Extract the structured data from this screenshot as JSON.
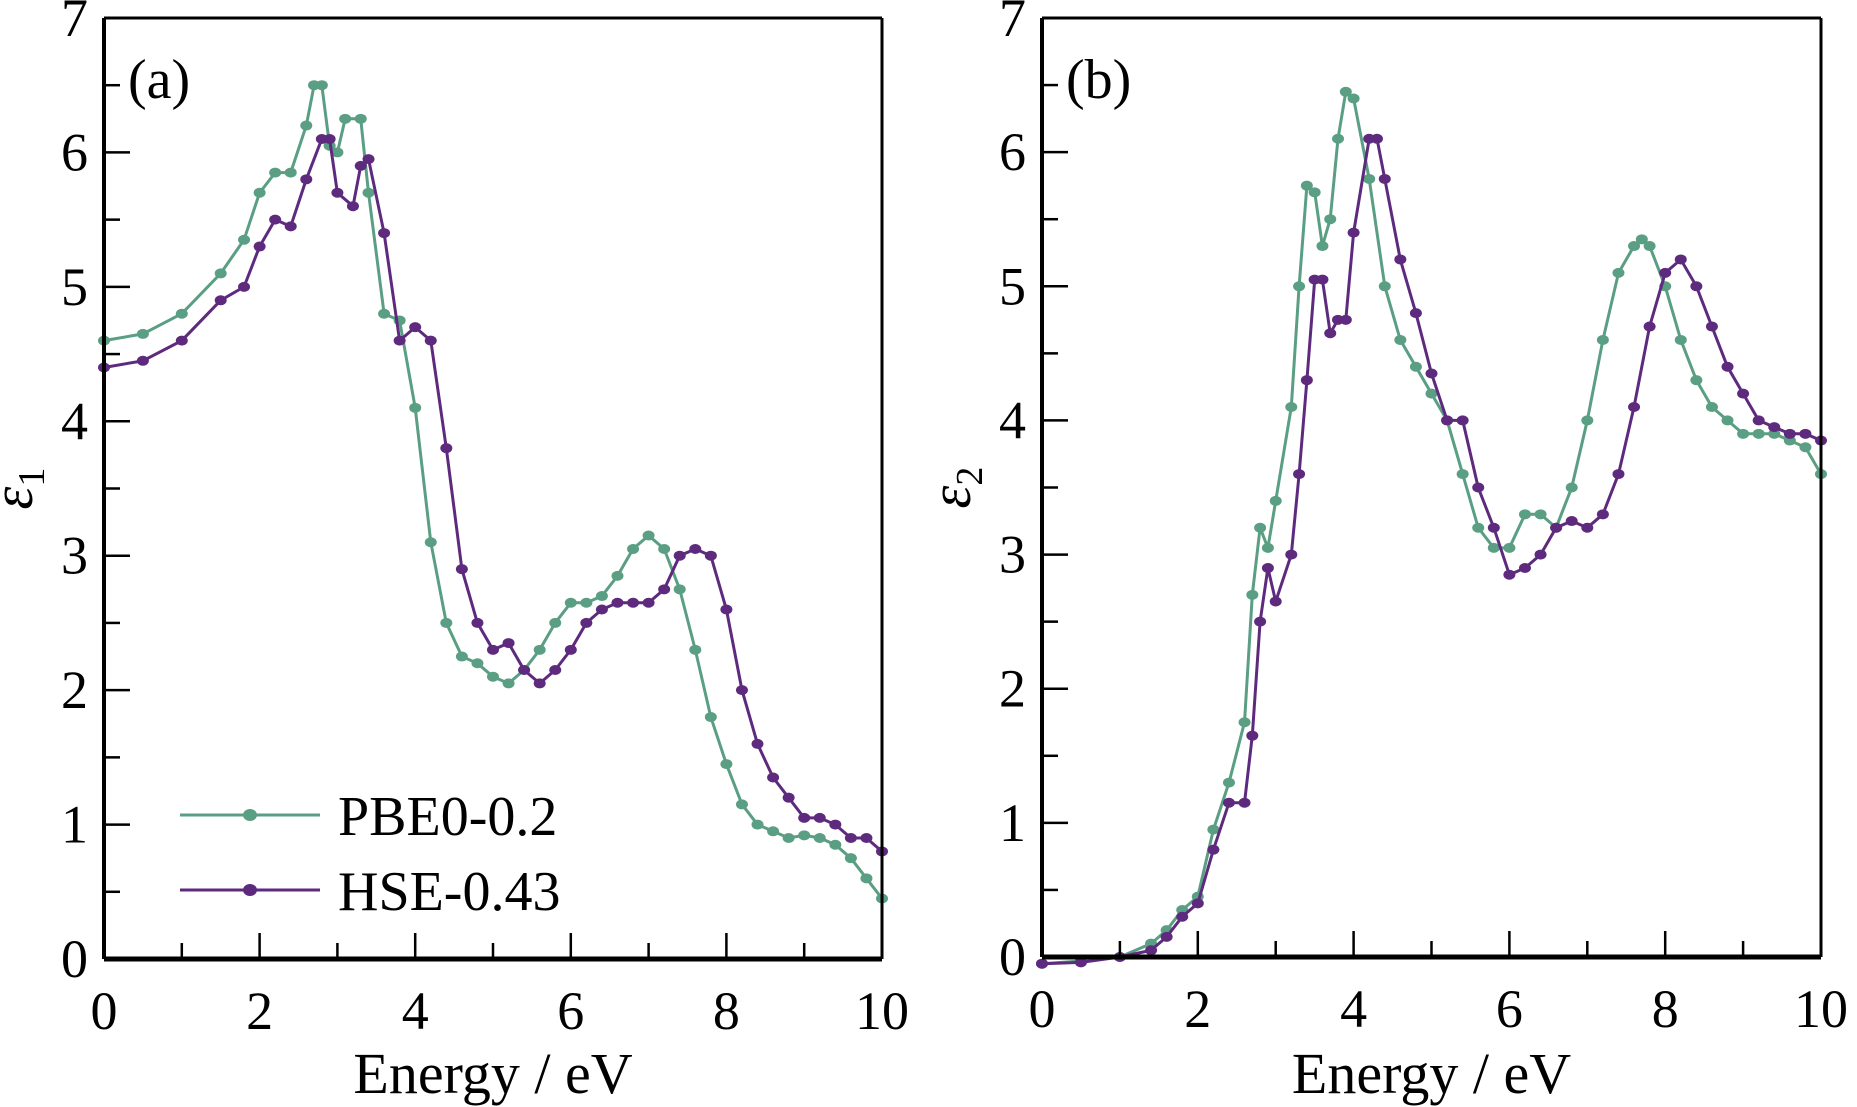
{
  "colors": {
    "pbe0": "#5a9e84",
    "hse": "#5e2a7e"
  },
  "legend": [
    "PBE0-0.2",
    "HSE-0.43"
  ],
  "chart_data": [
    {
      "type": "line",
      "panel_label": "(a)",
      "xlabel": "Energy / eV",
      "ylabel": "ε",
      "ylabel_sub": "1",
      "xlim": [
        0,
        10
      ],
      "ylim": [
        0,
        7
      ],
      "xticks": [
        "0",
        "2",
        "4",
        "6",
        "8",
        "10"
      ],
      "yticks": [
        "0",
        "1",
        "2",
        "3",
        "4",
        "5",
        "6",
        "7"
      ],
      "legend_placement": "bottom-left",
      "series": [
        {
          "name": "PBE0-0.2",
          "x": [
            0,
            0.5,
            1,
            1.5,
            1.8,
            2.0,
            2.2,
            2.4,
            2.6,
            2.7,
            2.8,
            2.9,
            3.0,
            3.1,
            3.3,
            3.4,
            3.6,
            3.8,
            4.0,
            4.2,
            4.4,
            4.6,
            4.8,
            5.0,
            5.2,
            5.4,
            5.6,
            5.8,
            6.0,
            6.2,
            6.4,
            6.6,
            6.8,
            7.0,
            7.2,
            7.4,
            7.6,
            7.8,
            8.0,
            8.2,
            8.4,
            8.6,
            8.8,
            9.0,
            9.2,
            9.4,
            9.6,
            9.8,
            10
          ],
          "y": [
            4.6,
            4.65,
            4.8,
            5.1,
            5.35,
            5.7,
            5.85,
            5.85,
            6.2,
            6.5,
            6.5,
            6.05,
            6.0,
            6.25,
            6.25,
            5.7,
            4.8,
            4.75,
            4.1,
            3.1,
            2.5,
            2.25,
            2.2,
            2.1,
            2.05,
            2.15,
            2.3,
            2.5,
            2.65,
            2.65,
            2.7,
            2.85,
            3.05,
            3.15,
            3.05,
            2.75,
            2.3,
            1.8,
            1.45,
            1.15,
            1.0,
            0.95,
            0.9,
            0.92,
            0.9,
            0.85,
            0.75,
            0.6,
            0.45
          ]
        },
        {
          "name": "HSE-0.43",
          "x": [
            0,
            0.5,
            1,
            1.5,
            1.8,
            2.0,
            2.2,
            2.4,
            2.6,
            2.8,
            2.9,
            3.0,
            3.2,
            3.3,
            3.4,
            3.6,
            3.8,
            4.0,
            4.2,
            4.4,
            4.6,
            4.8,
            5.0,
            5.2,
            5.4,
            5.6,
            5.8,
            6.0,
            6.2,
            6.4,
            6.6,
            6.8,
            7.0,
            7.2,
            7.4,
            7.6,
            7.8,
            8.0,
            8.2,
            8.4,
            8.6,
            8.8,
            9.0,
            9.2,
            9.4,
            9.6,
            9.8,
            10
          ],
          "y": [
            4.4,
            4.45,
            4.6,
            4.9,
            5.0,
            5.3,
            5.5,
            5.45,
            5.8,
            6.1,
            6.1,
            5.7,
            5.6,
            5.9,
            5.95,
            5.4,
            4.6,
            4.7,
            4.6,
            3.8,
            2.9,
            2.5,
            2.3,
            2.35,
            2.15,
            2.05,
            2.15,
            2.3,
            2.5,
            2.6,
            2.65,
            2.65,
            2.65,
            2.75,
            3.0,
            3.05,
            3.0,
            2.6,
            2.0,
            1.6,
            1.35,
            1.2,
            1.05,
            1.05,
            1.0,
            0.9,
            0.9,
            0.8
          ]
        }
      ]
    },
    {
      "type": "line",
      "panel_label": "(b)",
      "xlabel": "Energy / eV",
      "ylabel": "ε",
      "ylabel_sub": "2",
      "xlim": [
        0,
        10
      ],
      "ylim": [
        0,
        7
      ],
      "xticks": [
        "0",
        "2",
        "4",
        "6",
        "8",
        "10"
      ],
      "yticks": [
        "0",
        "1",
        "2",
        "3",
        "4",
        "5",
        "6",
        "7"
      ],
      "series": [
        {
          "name": "PBE0-0.2",
          "x": [
            0,
            0.5,
            1,
            1.4,
            1.6,
            1.8,
            2.0,
            2.2,
            2.4,
            2.6,
            2.7,
            2.8,
            2.9,
            3.0,
            3.2,
            3.3,
            3.4,
            3.5,
            3.6,
            3.7,
            3.8,
            3.9,
            4.0,
            4.2,
            4.4,
            4.6,
            4.8,
            5.0,
            5.2,
            5.4,
            5.6,
            5.8,
            6.0,
            6.2,
            6.4,
            6.6,
            6.8,
            7.0,
            7.2,
            7.4,
            7.6,
            7.7,
            7.8,
            8.0,
            8.2,
            8.4,
            8.6,
            8.8,
            9.0,
            9.2,
            9.4,
            9.6,
            9.8,
            10
          ],
          "y": [
            -0.05,
            -0.03,
            0.0,
            0.1,
            0.2,
            0.35,
            0.45,
            0.95,
            1.3,
            1.75,
            2.7,
            3.2,
            3.05,
            3.4,
            4.1,
            5.0,
            5.75,
            5.7,
            5.3,
            5.5,
            6.1,
            6.45,
            6.4,
            5.8,
            5.0,
            4.6,
            4.4,
            4.2,
            4.0,
            3.6,
            3.2,
            3.05,
            3.05,
            3.3,
            3.3,
            3.2,
            3.5,
            4.0,
            4.6,
            5.1,
            5.3,
            5.35,
            5.3,
            5.0,
            4.6,
            4.3,
            4.1,
            4.0,
            3.9,
            3.9,
            3.9,
            3.85,
            3.8,
            3.6
          ]
        },
        {
          "name": "HSE-0.43",
          "x": [
            0,
            0.5,
            1,
            1.4,
            1.6,
            1.8,
            2.0,
            2.2,
            2.4,
            2.6,
            2.7,
            2.8,
            2.9,
            3.0,
            3.2,
            3.3,
            3.4,
            3.5,
            3.6,
            3.7,
            3.8,
            3.9,
            4.0,
            4.2,
            4.3,
            4.4,
            4.6,
            4.8,
            5.0,
            5.2,
            5.4,
            5.6,
            5.8,
            6.0,
            6.2,
            6.4,
            6.6,
            6.8,
            7.0,
            7.2,
            7.4,
            7.6,
            7.8,
            8.0,
            8.2,
            8.4,
            8.6,
            8.8,
            9.0,
            9.2,
            9.4,
            9.6,
            9.8,
            10
          ],
          "y": [
            -0.05,
            -0.04,
            0.0,
            0.05,
            0.15,
            0.3,
            0.4,
            0.8,
            1.15,
            1.15,
            1.65,
            2.5,
            2.9,
            2.65,
            3.0,
            3.6,
            4.3,
            5.05,
            5.05,
            4.65,
            4.75,
            4.75,
            5.4,
            6.1,
            6.1,
            5.8,
            5.2,
            4.8,
            4.35,
            4.0,
            4.0,
            3.5,
            3.2,
            2.85,
            2.9,
            3.0,
            3.2,
            3.25,
            3.2,
            3.3,
            3.6,
            4.1,
            4.7,
            5.1,
            5.2,
            5.0,
            4.7,
            4.4,
            4.2,
            4.0,
            3.95,
            3.9,
            3.9,
            3.85
          ]
        }
      ]
    }
  ]
}
